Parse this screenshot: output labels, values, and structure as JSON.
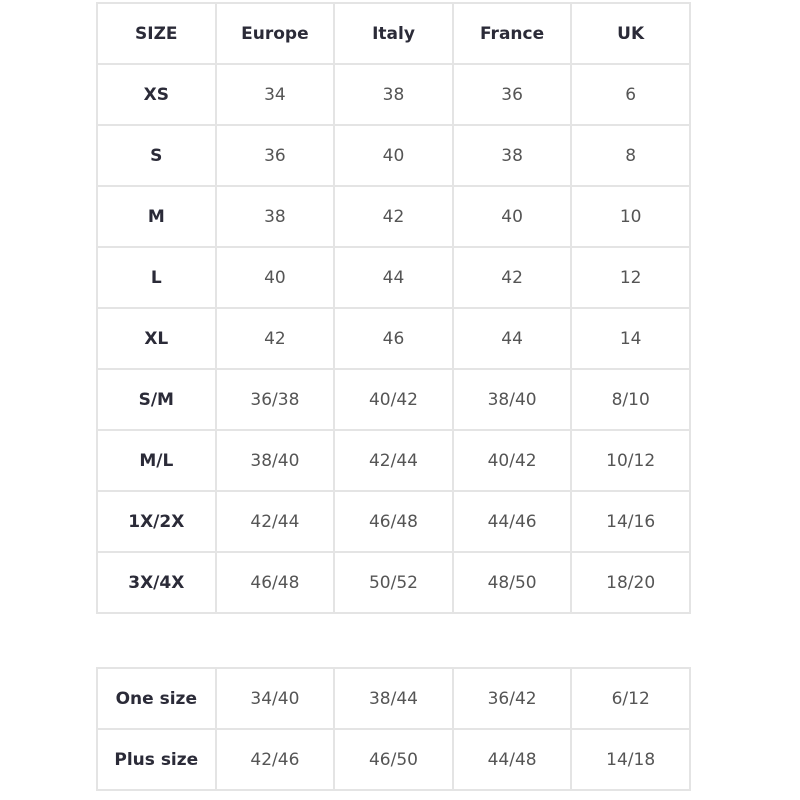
{
  "size_table": {
    "headers": [
      "SIZE",
      "Europe",
      "Italy",
      "France",
      "UK"
    ],
    "rows": [
      [
        "XS",
        "34",
        "38",
        "36",
        "6"
      ],
      [
        "S",
        "36",
        "40",
        "38",
        "8"
      ],
      [
        "M",
        "38",
        "42",
        "40",
        "10"
      ],
      [
        "L",
        "40",
        "44",
        "42",
        "12"
      ],
      [
        "XL",
        "42",
        "46",
        "44",
        "14"
      ],
      [
        "S/M",
        "36/38",
        "40/42",
        "38/40",
        "8/10"
      ],
      [
        "M/L",
        "38/40",
        "42/44",
        "40/42",
        "10/12"
      ],
      [
        "1X/2X",
        "42/44",
        "46/48",
        "44/46",
        "14/16"
      ],
      [
        "3X/4X",
        "46/48",
        "50/52",
        "48/50",
        "18/20"
      ]
    ]
  },
  "extra_table": {
    "rows": [
      [
        "One size",
        "34/40",
        "38/44",
        "36/42",
        "6/12"
      ],
      [
        "Plus size",
        "42/46",
        "46/50",
        "44/48",
        "14/18"
      ]
    ]
  }
}
